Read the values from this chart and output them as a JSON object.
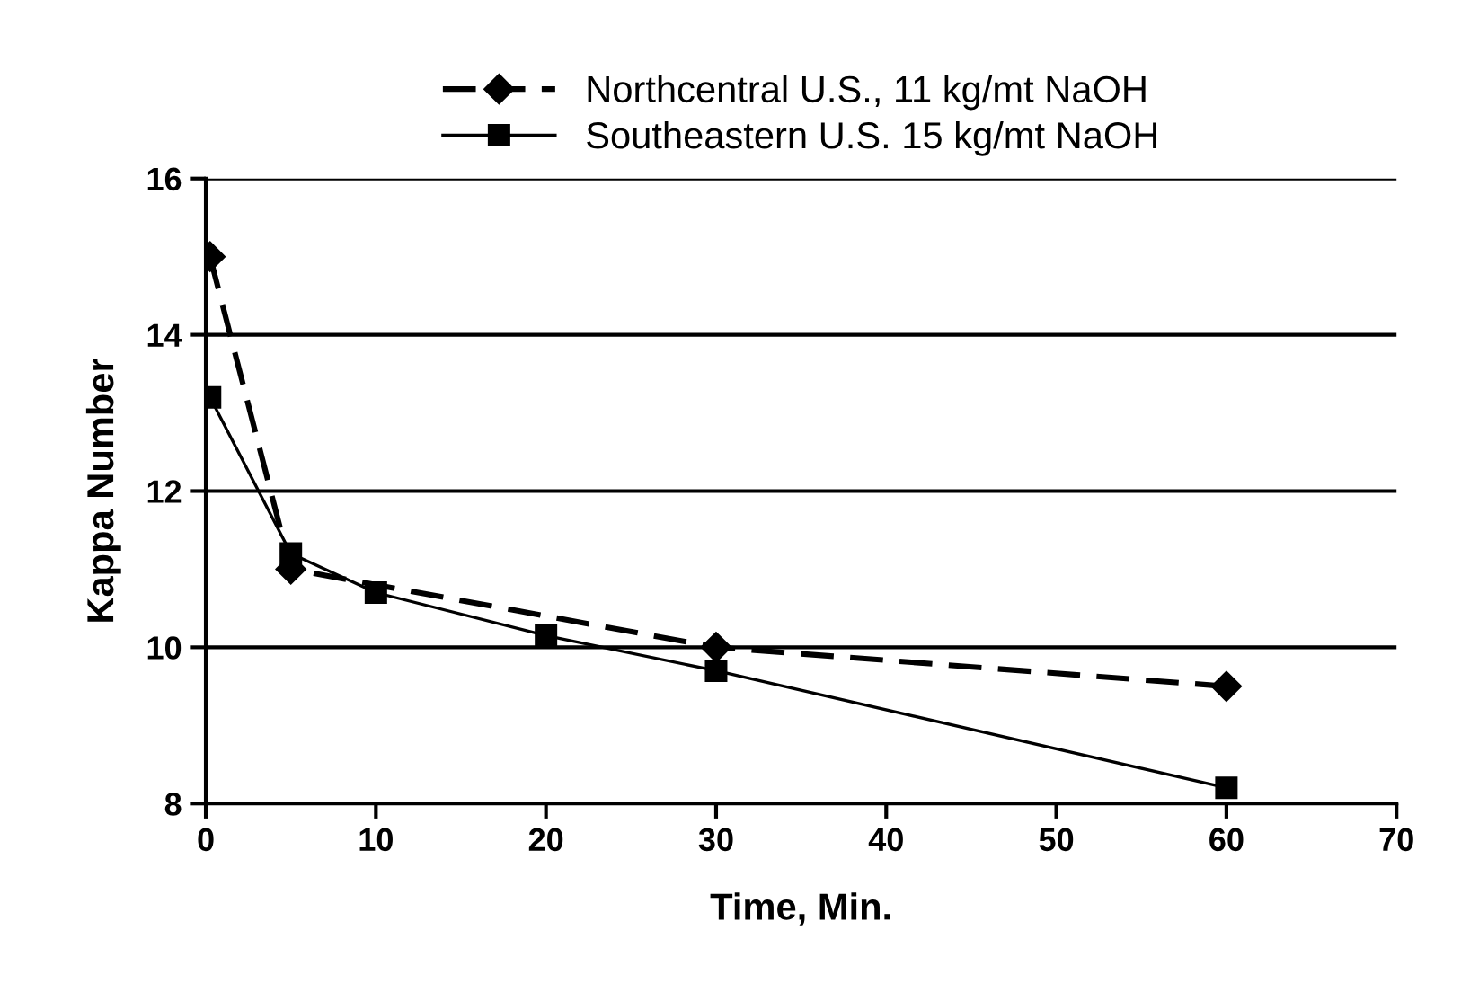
{
  "chart_data": {
    "type": "line",
    "xlabel": "Time, Min.",
    "ylabel": "Kappa Number",
    "xlim": [
      0,
      70
    ],
    "xticks": [
      0,
      10,
      20,
      30,
      40,
      50,
      60,
      70
    ],
    "ylim": [
      8,
      16
    ],
    "yticks": [
      8,
      10,
      12,
      14,
      16
    ],
    "grid": "y",
    "legend": "top",
    "series": [
      {
        "name": "Northcentral U.S., 11 kg/mt NaOH",
        "color": "#000000",
        "marker": "diamond",
        "line_style": "dashed",
        "x": [
          0.25,
          5,
          30,
          60
        ],
        "values": [
          15,
          11,
          10,
          9.5
        ]
      },
      {
        "name": "Southeastern U.S. 15 kg/mt NaOH",
        "color": "#000000",
        "marker": "square",
        "line_style": "solid",
        "x": [
          0.25,
          5,
          10,
          20,
          30,
          60
        ],
        "values": [
          13.2,
          11.2,
          10.7,
          10.15,
          9.7,
          8.2
        ]
      }
    ]
  }
}
